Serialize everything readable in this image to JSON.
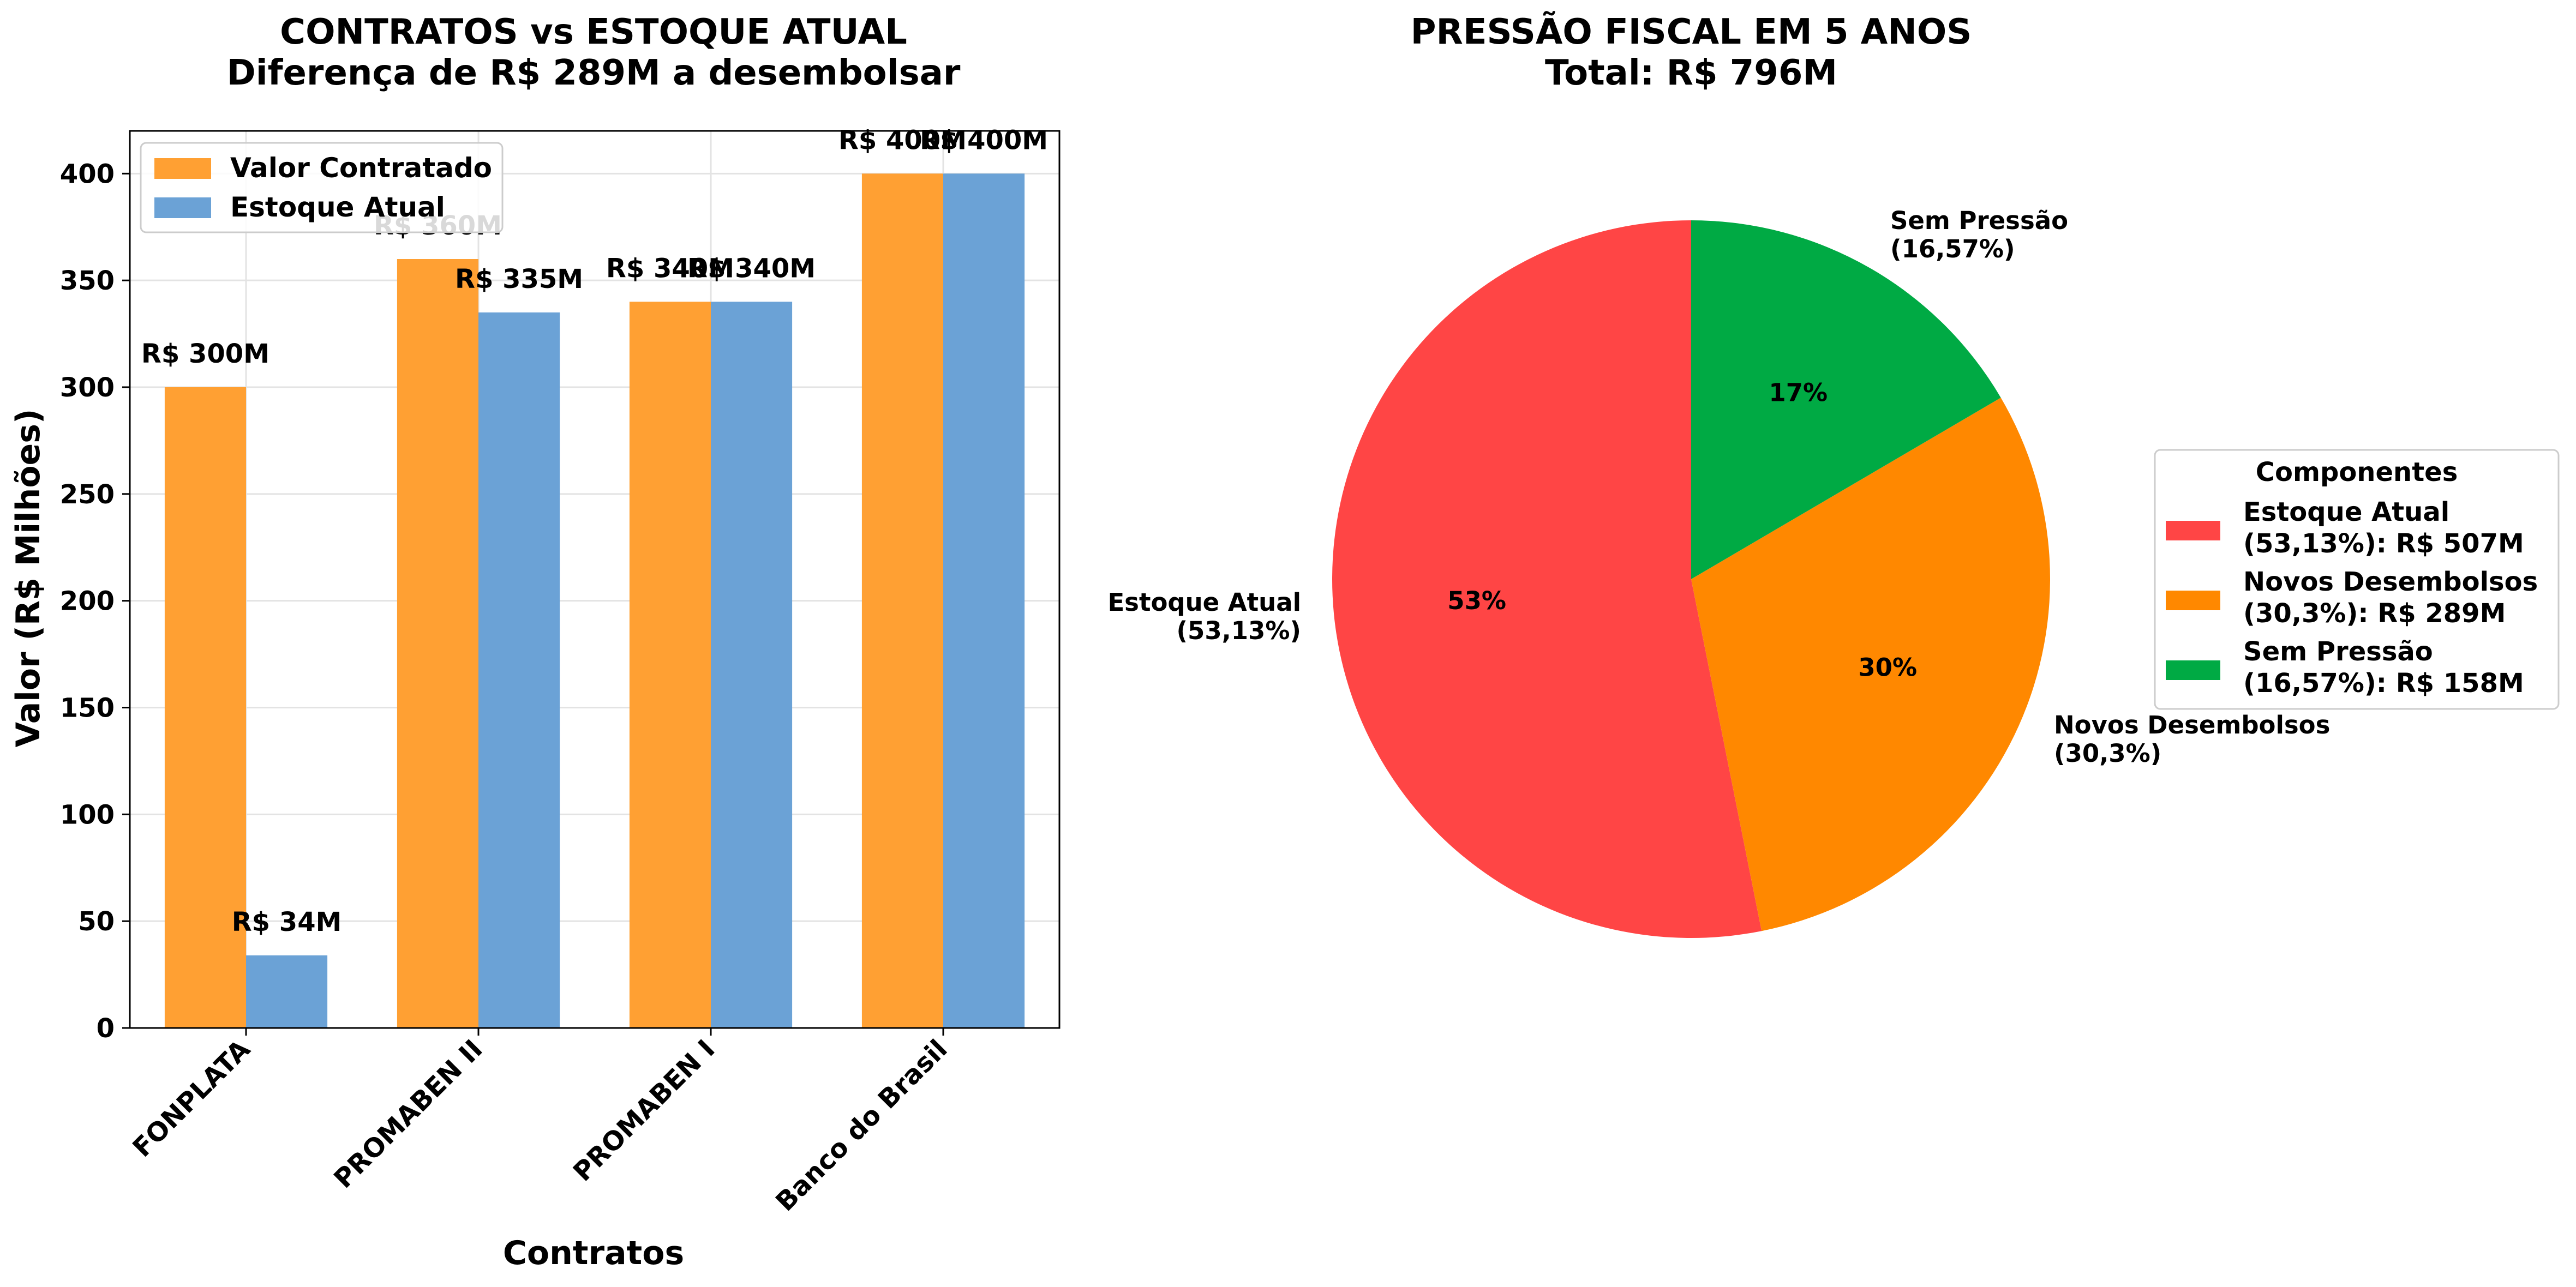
{
  "chart_data": [
    {
      "type": "bar",
      "title_line1": "CONTRATOS vs ESTOQUE ATUAL",
      "title_line2": "Diferença de R$ 289M a desembolsar",
      "xlabel": "Contratos",
      "ylabel": "Valor (R$ Milhões)",
      "ylim": [
        0,
        420
      ],
      "yticks": [
        0,
        50,
        100,
        150,
        200,
        250,
        300,
        350,
        400
      ],
      "grid": true,
      "legend_position": "upper-left",
      "categories": [
        "FONPLATA",
        "PROMABEN II",
        "PROMABEN I",
        "Banco do Brasil"
      ],
      "series": [
        {
          "name": "Valor Contratado",
          "color": "#FFA033",
          "values": [
            300,
            360,
            340,
            400
          ],
          "labels": [
            "R$ 300M",
            "R$ 360M",
            "R$ 340M",
            "R$ 400M"
          ]
        },
        {
          "name": "Estoque Atual",
          "color": "#6BA2D6",
          "values": [
            34,
            335,
            340,
            400
          ],
          "labels": [
            "R$ 34M",
            "R$ 335M",
            "R$ 340M",
            "R$ 400M"
          ]
        }
      ]
    },
    {
      "type": "pie",
      "title_line1": "PRESSÃO FISCAL EM 5 ANOS",
      "title_line2": "Total: R$ 796M",
      "legend_title": "Componentes",
      "legend_position": "center-right",
      "start_angle_deg": 90,
      "direction": "clockwise-from-top-starting-with-last",
      "slices": [
        {
          "name": "Estoque Atual",
          "value": 507,
          "percent_label": "53%",
          "outer_label_line1": "Estoque Atual",
          "outer_label_line2": "(53,13%)",
          "legend_line1": "Estoque Atual",
          "legend_line2": "(53,13%): R$ 507M",
          "color": "#FF4545"
        },
        {
          "name": "Novos Desembolsos",
          "value": 289,
          "percent_label": "30%",
          "outer_label_line1": "Novos Desembolsos",
          "outer_label_line2": "(30,3%)",
          "legend_line1": "Novos Desembolsos",
          "legend_line2": "(30,3%): R$ 289M",
          "color": "#FF8800"
        },
        {
          "name": "Sem Pressão",
          "value": 158,
          "percent_label": "17%",
          "outer_label_line1": "Sem Pressão",
          "outer_label_line2": "(16,57%)",
          "legend_line1": "Sem Pressão",
          "legend_line2": "(16,57%): R$ 158M",
          "color": "#00AA44"
        }
      ]
    }
  ]
}
